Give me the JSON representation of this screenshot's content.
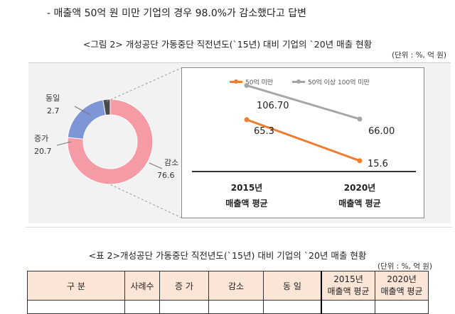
{
  "bullet_text": "- 매출액 50억 원 미만 기업의 경우 98.0%가 감소했다고 답변",
  "figure": {
    "title": "<그림 2> 개성공단 가동중단 직전년도(`15년) 대비 기업의 `20년 매출 현황",
    "unit": "(단위 : %, 억 원)"
  },
  "donut": {
    "segments": [
      {
        "label": "감소",
        "value": "76.6",
        "color": "#f59ba5"
      },
      {
        "label": "증가",
        "value": "20.7",
        "color": "#7e95d6"
      },
      {
        "label": "동일",
        "value": "2.7",
        "color": "#4a4a4a"
      }
    ]
  },
  "chart_data": {
    "type": "line",
    "categories": [
      "2015년\n매출액 평균",
      "2020년\n매출액 평균"
    ],
    "category_lines": [
      [
        "2015년",
        "매출액 평균"
      ],
      [
        "2020년",
        "매출액 평균"
      ]
    ],
    "series": [
      {
        "name": "50억 미만",
        "values": [
          65.3,
          15.6
        ],
        "labels": [
          "65.3",
          "15.6"
        ],
        "color": "#ed7d31"
      },
      {
        "name": "50억 이상 100억 미만",
        "values": [
          106.7,
          66.0
        ],
        "labels": [
          "106.70",
          "66.00"
        ],
        "color": "#a6a6a6"
      }
    ],
    "legend_position": "top",
    "grid": false
  },
  "table": {
    "title": "<표 2>개성공단 가동중단 직전년도(`15년) 대비 기업의 `20년 매출 현황",
    "unit": "(단위 : %, 억 원)",
    "headers": [
      "구 분",
      "사례수",
      "증 가",
      "감소",
      "동 일"
    ],
    "headers_two_line": [
      [
        "2015년",
        "매출액 평균"
      ],
      [
        "2020년",
        "매출액 평균"
      ]
    ]
  }
}
